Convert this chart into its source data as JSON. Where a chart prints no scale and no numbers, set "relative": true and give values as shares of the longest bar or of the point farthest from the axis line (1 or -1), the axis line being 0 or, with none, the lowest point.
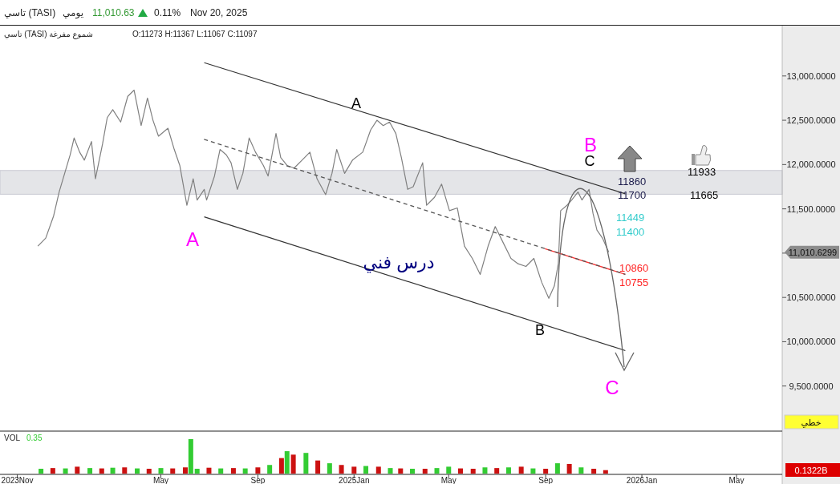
{
  "chart_data": [
    {
      "type": "line",
      "title": "تاسي (TASI)",
      "subtitle": "يومي",
      "x": [
        "2023-11-27",
        "2023-12-07",
        "2023-12-17",
        "2023-12-24",
        "2023-12-31",
        "2024-01-07",
        "2024-01-12",
        "2024-01-19",
        "2024-01-25",
        "2024-02-03",
        "2024-02-08",
        "2024-02-17",
        "2024-02-23",
        "2024-03-01",
        "2024-03-11",
        "2024-03-20",
        "2024-03-28",
        "2024-04-06",
        "2024-04-14",
        "2024-04-21",
        "2024-04-28",
        "2024-05-10",
        "2024-05-18",
        "2024-05-25",
        "2024-06-03",
        "2024-06-11",
        "2024-06-16",
        "2024-06-25",
        "2024-06-28",
        "2024-07-08",
        "2024-07-15",
        "2024-07-23",
        "2024-07-29",
        "2024-08-06",
        "2024-08-13",
        "2024-08-21",
        "2024-08-29",
        "2024-09-08",
        "2024-09-14",
        "2024-09-24",
        "2024-09-30",
        "2024-10-08",
        "2024-10-17",
        "2024-10-27",
        "2024-11-06",
        "2024-11-15",
        "2024-11-26",
        "2024-12-04",
        "2024-12-10",
        "2024-12-20",
        "2024-12-30",
        "2025-01-12",
        "2025-01-22",
        "2025-01-30",
        "2025-02-07",
        "2025-02-15",
        "2025-02-23",
        "2025-03-02",
        "2025-03-10",
        "2025-03-17",
        "2025-03-29",
        "2025-04-03",
        "2025-04-13",
        "2025-04-22",
        "2025-05-02",
        "2025-05-12",
        "2025-05-21",
        "2025-05-31",
        "2025-06-10",
        "2025-06-20",
        "2025-06-29",
        "2025-07-09",
        "2025-07-19",
        "2025-07-28",
        "2025-08-07",
        "2025-08-17",
        "2025-08-27",
        "2025-09-05",
        "2025-09-12",
        "2025-09-17",
        "2025-09-20",
        "2025-09-28",
        "2025-10-04",
        "2025-10-12",
        "2025-10-17",
        "2025-10-26",
        "2025-10-31",
        "2025-11-05",
        "2025-11-12",
        "2025-11-20"
      ],
      "series": [
        {
          "color": "#808080",
          "values": [
            11080,
            11170,
            11420,
            11690,
            11900,
            12110,
            12300,
            12140,
            12050,
            12260,
            11840,
            12230,
            12530,
            12620,
            12480,
            12770,
            12840,
            12440,
            12750,
            12500,
            12320,
            12410,
            12170,
            11990,
            11540,
            11840,
            11600,
            11720,
            11600,
            11870,
            12170,
            12110,
            12020,
            11720,
            11900,
            12300,
            12140,
            11990,
            11870,
            12350,
            12080,
            11990,
            11960,
            12050,
            12140,
            11840,
            11660,
            11900,
            12170,
            11900,
            12050,
            12140,
            12390,
            12500,
            12440,
            12480,
            12350,
            12080,
            11720,
            11750,
            12020,
            11540,
            11630,
            11780,
            11480,
            11510,
            11080,
            10940,
            10760,
            11080,
            11300,
            11120,
            10940,
            10880,
            10850,
            10940,
            10670,
            10490,
            10630,
            10880,
            11480,
            11540,
            11600,
            11690,
            11600,
            11720,
            11450,
            11260,
            11170,
            11010
          ]
        },
        {
          "type": "line",
          "color": "#333333",
          "x": [
            "2024-06-25",
            "2025-12-11"
          ],
          "values": [
            13150,
            11670
          ]
        },
        {
          "type": "line",
          "color": "#333333",
          "x": [
            "2024-06-25",
            "2025-12-11"
          ],
          "values": [
            11410,
            9900
          ]
        },
        {
          "type": "line",
          "color": "#ff3333",
          "x": [
            "2025-08-31",
            "2025-12-11"
          ],
          "values": [
            11050,
            10760
          ]
        },
        {
          "type": "line",
          "color": "#555555",
          "line_style": "dashed",
          "x": [
            "2024-06-23",
            "2025-12-11"
          ],
          "values": [
            12290,
            10760
          ]
        }
      ],
      "xlim": [
        "2023-10-10",
        "2026-06-28"
      ],
      "ylim": [
        9000,
        13550
      ],
      "yticks": [
        {
          "value": 9500,
          "label": "9,500.0000"
        },
        {
          "value": 10000,
          "label": "10,000.0000"
        },
        {
          "value": 10500,
          "label": "10,500.0000"
        },
        {
          "value": 11000,
          "label": null
        },
        {
          "value": 11500,
          "label": "11,500.0000"
        },
        {
          "value": 12000,
          "label": "12,000.0000"
        },
        {
          "value": 12500,
          "label": "12,500.0000"
        },
        {
          "value": 13000,
          "label": "13,000.0000"
        }
      ],
      "tick_labels": "y",
      "bands": [
        {
          "axis": "y",
          "from": 11665,
          "to": 11933,
          "color": "#e4e5e8"
        }
      ],
      "annotations": [
        "11,010.63",
        "0.11%",
        "Nov 20, 2025",
        "تاسي (TASI) شموع مفرغة",
        "O:11273  H:11367  L:11067  C:11097",
        "11,010.6299",
        "خطي",
        "A",
        "A",
        "B",
        "B",
        "C",
        "C",
        "درس فني",
        "11860",
        "11700",
        "11449",
        "11400",
        "10860",
        "10755",
        "11933",
        "11665"
      ]
    },
    {
      "type": "bar",
      "title": "VOL",
      "relative": true,
      "x": [
        "2023-12-01",
        "2023-12-16",
        "2024-01-01",
        "2024-01-16",
        "2024-02-01",
        "2024-02-16",
        "2024-03-01",
        "2024-03-16",
        "2024-04-01",
        "2024-04-16",
        "2024-05-01",
        "2024-05-16",
        "2024-06-01",
        "2024-06-08",
        "2024-06-16",
        "2024-07-01",
        "2024-07-16",
        "2024-08-01",
        "2024-08-16",
        "2024-09-01",
        "2024-09-16",
        "2024-10-01",
        "2024-10-08",
        "2024-10-16",
        "2024-11-01",
        "2024-11-16",
        "2024-12-01",
        "2024-12-16",
        "2025-01-01",
        "2025-01-16",
        "2025-02-01",
        "2025-02-16",
        "2025-03-01",
        "2025-03-16",
        "2025-04-01",
        "2025-04-16",
        "2025-05-01",
        "2025-05-16",
        "2025-06-01",
        "2025-06-16",
        "2025-07-01",
        "2025-07-16",
        "2025-08-01",
        "2025-08-16",
        "2025-09-01",
        "2025-09-16",
        "2025-10-01",
        "2025-10-16",
        "2025-11-01",
        "2025-11-16"
      ],
      "values": [
        0.14,
        0.16,
        0.15,
        0.2,
        0.16,
        0.15,
        0.17,
        0.18,
        0.15,
        0.14,
        0.16,
        0.15,
        0.18,
        1,
        0.14,
        0.17,
        0.15,
        0.16,
        0.15,
        0.18,
        0.25,
        0.45,
        0.65,
        0.55,
        0.6,
        0.38,
        0.3,
        0.25,
        0.2,
        0.22,
        0.2,
        0.16,
        0.15,
        0.14,
        0.14,
        0.16,
        0.2,
        0.15,
        0.14,
        0.18,
        0.16,
        0.18,
        0.2,
        0.15,
        0.14,
        0.3,
        0.28,
        0.18,
        0.14,
        0.1
      ],
      "colors": [
        "#33cc33",
        "#cc1111",
        "#33cc33",
        "#cc1111",
        "#33cc33",
        "#cc1111",
        "#33cc33",
        "#cc1111",
        "#33cc33",
        "#cc1111",
        "#33cc33",
        "#cc1111",
        "#cc1111",
        "#33cc33",
        "#33cc33",
        "#cc1111",
        "#33cc33",
        "#cc1111",
        "#33cc33",
        "#cc1111",
        "#33cc33",
        "#cc1111",
        "#33cc33",
        "#cc1111",
        "#33cc33",
        "#cc1111",
        "#33cc33",
        "#cc1111",
        "#cc1111",
        "#33cc33",
        "#cc1111",
        "#33cc33",
        "#cc1111",
        "#33cc33",
        "#cc1111",
        "#33cc33",
        "#33cc33",
        "#cc1111",
        "#cc1111",
        "#33cc33",
        "#cc1111",
        "#33cc33",
        "#cc1111",
        "#33cc33",
        "#cc1111",
        "#33cc33",
        "#cc1111",
        "#33cc33",
        "#cc1111",
        "#cc1111"
      ],
      "xlim": [
        "2023-10-10",
        "2026-06-28"
      ],
      "xticks": [
        {
          "value": "2023-11-01",
          "label": "2023Nov"
        },
        {
          "value": "2024-05-01",
          "label": "May"
        },
        {
          "value": "2024-09-01",
          "label": "Sep"
        },
        {
          "value": "2025-01-01",
          "label": "2025Jan"
        },
        {
          "value": "2025-05-01",
          "label": "May"
        },
        {
          "value": "2025-09-01",
          "label": "Sep"
        },
        {
          "value": "2026-01-01",
          "label": "2026Jan"
        },
        {
          "value": "2026-05-01",
          "label": "May"
        }
      ],
      "tick_labels": "x",
      "annotations": [
        "0.35",
        "0.1322B"
      ]
    }
  ]
}
